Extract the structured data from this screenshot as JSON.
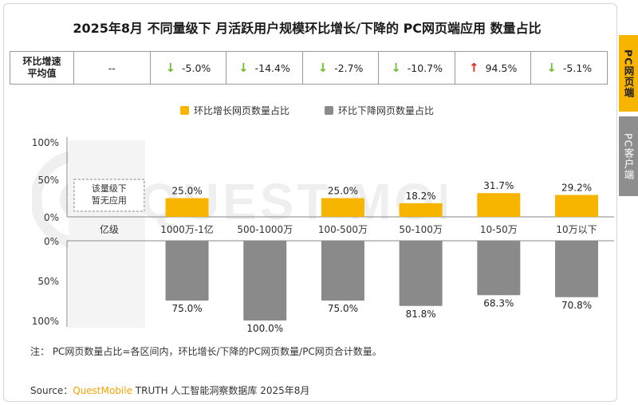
{
  "title": "2025年8月 不同量级下 月活跃用户规模环比增长/下降的 PC网页端应用 数量占比",
  "avg_row": {
    "header": "环比增速\n平均值",
    "cells": [
      {
        "value": "--",
        "direction": "none"
      },
      {
        "value": "-5.0%",
        "direction": "down"
      },
      {
        "value": "-14.4%",
        "direction": "down"
      },
      {
        "value": "-2.7%",
        "direction": "down"
      },
      {
        "value": "-10.7%",
        "direction": "down"
      },
      {
        "value": "94.5%",
        "direction": "up"
      },
      {
        "value": "-5.1%",
        "direction": "down"
      }
    ]
  },
  "legend": {
    "growth": "环比增长网页数量占比",
    "decline": "环比下降网页数量占比"
  },
  "colors": {
    "growth": "#f7b500",
    "decline": "#8a8a8a",
    "arrow_down": "#6cbd2e",
    "arrow_up": "#e8261c",
    "brand": "#f5a400"
  },
  "chart_data": {
    "type": "bar",
    "categories": [
      "亿级",
      "1000万-1亿",
      "500-1000万",
      "100-500万",
      "50-100万",
      "10-50万",
      "10万以下"
    ],
    "series": [
      {
        "name": "环比增长网页数量占比",
        "values": [
          null,
          25.0,
          null,
          25.0,
          18.2,
          31.7,
          29.2
        ],
        "labels": [
          "",
          "25.0%",
          "",
          "25.0%",
          "18.2%",
          "31.7%",
          "29.2%"
        ]
      },
      {
        "name": "环比下降网页数量占比",
        "values": [
          null,
          75.0,
          100.0,
          75.0,
          81.8,
          68.3,
          70.8
        ],
        "labels": [
          "",
          "75.0%",
          "100.0%",
          "75.0%",
          "81.8%",
          "68.3%",
          "70.8%"
        ]
      }
    ],
    "upper_ticks": [
      "100%",
      "50%",
      "0%"
    ],
    "lower_ticks": [
      "0%",
      "50%",
      "100%"
    ],
    "ylim": [
      0,
      100
    ],
    "empty_note": "该量级下\n暂无应用"
  },
  "note": "注： PC网页数量占比=各区间内，环比增长/下降的PC网页数量/PC网页合计数量。",
  "source": {
    "prefix": "Source：",
    "brand": "QuestMobile",
    "suffix": " TRUTH 人工智能洞察数据库 2025年8月"
  },
  "side_tabs": [
    "PC网页端",
    "PC客户端"
  ]
}
